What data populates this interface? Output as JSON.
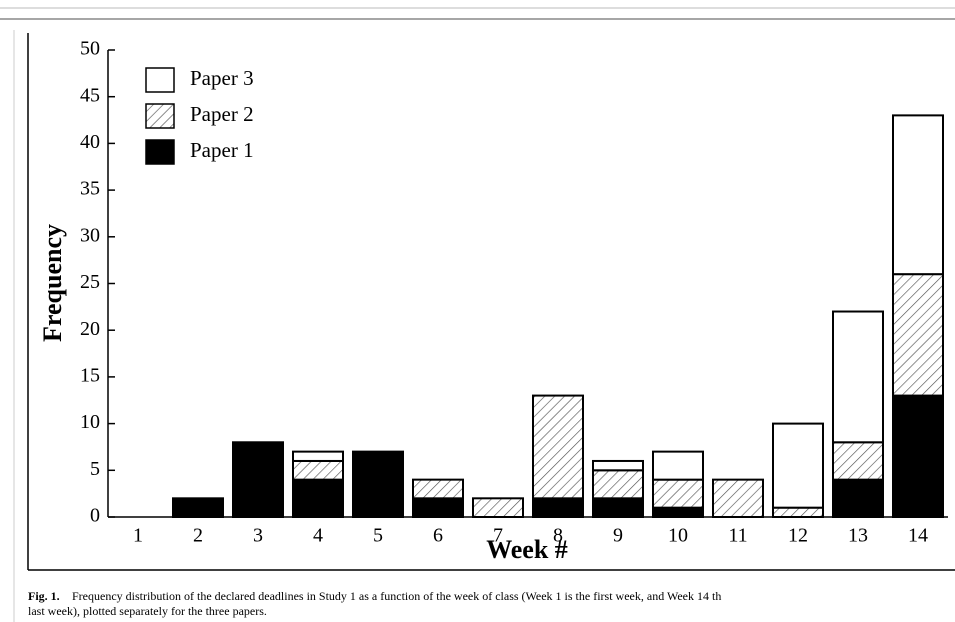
{
  "chart_data": {
    "type": "stacked_bar",
    "x_label": "Week #",
    "y_label": "Frequency",
    "categories": [
      "1",
      "2",
      "3",
      "4",
      "5",
      "6",
      "7",
      "8",
      "9",
      "10",
      "11",
      "12",
      "13",
      "14"
    ],
    "series": [
      {
        "name": "Paper 1",
        "color": "#000000",
        "pattern": "solid",
        "values": [
          0,
          2,
          8,
          4,
          7,
          2,
          0,
          2,
          2,
          1,
          0,
          0,
          4,
          13
        ]
      },
      {
        "name": "Paper 2",
        "color": "#ffffff",
        "pattern": "hatch",
        "values": [
          0,
          0,
          0,
          2,
          0,
          2,
          2,
          11,
          3,
          3,
          4,
          1,
          4,
          13
        ]
      },
      {
        "name": "Paper 3",
        "color": "#ffffff",
        "pattern": "solid",
        "values": [
          0,
          0,
          0,
          1,
          0,
          0,
          0,
          0,
          1,
          3,
          0,
          9,
          14,
          17
        ]
      }
    ],
    "ylim": [
      0,
      50
    ],
    "yticks": [
      0,
      5,
      10,
      15,
      20,
      25,
      30,
      35,
      40,
      45,
      50
    ],
    "legend": "top-left"
  },
  "caption": {
    "label": "Fig. 1.",
    "lines": [
      "Frequency distribution of the declared deadlines in Study 1 as a function of the week of class (Week 1 is the first week, and Week 14 th",
      "last week), plotted separately for the three papers."
    ]
  }
}
